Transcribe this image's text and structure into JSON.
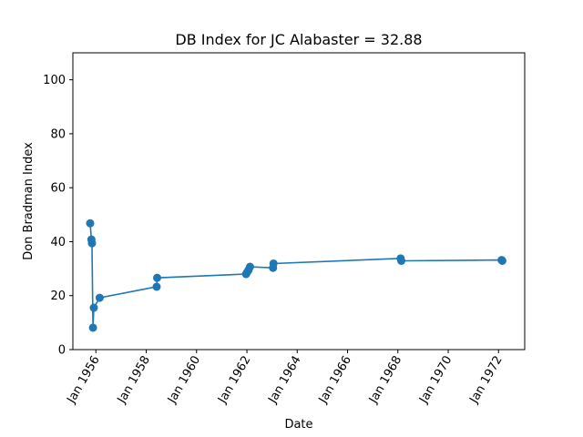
{
  "chart_data": {
    "type": "line",
    "title": "DB Index for JC Alabaster = 32.88",
    "xlabel": "Date",
    "ylabel": "Don Bradman Index",
    "xlim": [
      "1955-02-01",
      "1973-01-15"
    ],
    "ylim": [
      0,
      110
    ],
    "x_ticks": [
      "Jan 1956",
      "Jan 1958",
      "Jan 1960",
      "Jan 1962",
      "Jan 1964",
      "Jan 1966",
      "Jan 1968",
      "Jan 1970",
      "Jan 1972"
    ],
    "y_ticks": [
      0,
      20,
      40,
      60,
      80,
      100
    ],
    "grid": false,
    "series": [
      {
        "color": "#1f77b4",
        "marker": "circle",
        "points": [
          {
            "x": "1955-10-10",
            "y": 46.8
          },
          {
            "x": "1955-10-28",
            "y": 40.8
          },
          {
            "x": "1955-11-05",
            "y": 39.4
          },
          {
            "x": "1955-11-20",
            "y": 8.1
          },
          {
            "x": "1955-12-02",
            "y": 15.5
          },
          {
            "x": "1956-02-25",
            "y": 19.2
          },
          {
            "x": "1958-06-01",
            "y": 23.3
          },
          {
            "x": "1958-06-08",
            "y": 26.6
          },
          {
            "x": "1961-12-20",
            "y": 28.0
          },
          {
            "x": "1962-01-05",
            "y": 28.7
          },
          {
            "x": "1962-01-25",
            "y": 29.5
          },
          {
            "x": "1962-02-15",
            "y": 30.7
          },
          {
            "x": "1963-01-15",
            "y": 30.3
          },
          {
            "x": "1963-01-22",
            "y": 31.9
          },
          {
            "x": "1968-02-10",
            "y": 33.8
          },
          {
            "x": "1968-02-20",
            "y": 32.9
          },
          {
            "x": "1972-02-15",
            "y": 33.2
          },
          {
            "x": "1972-02-25",
            "y": 32.9
          }
        ]
      }
    ]
  }
}
